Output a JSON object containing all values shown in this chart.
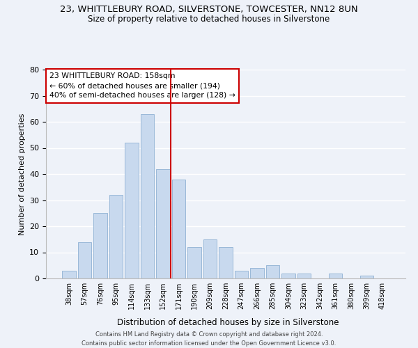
{
  "title": "23, WHITTLEBURY ROAD, SILVERSTONE, TOWCESTER, NN12 8UN",
  "subtitle": "Size of property relative to detached houses in Silverstone",
  "xlabel": "Distribution of detached houses by size in Silverstone",
  "ylabel": "Number of detached properties",
  "bar_color": "#c8d9ee",
  "bar_edge_color": "#9ab8d8",
  "categories": [
    "38sqm",
    "57sqm",
    "76sqm",
    "95sqm",
    "114sqm",
    "133sqm",
    "152sqm",
    "171sqm",
    "190sqm",
    "209sqm",
    "228sqm",
    "247sqm",
    "266sqm",
    "285sqm",
    "304sqm",
    "323sqm",
    "342sqm",
    "361sqm",
    "380sqm",
    "399sqm",
    "418sqm"
  ],
  "values": [
    3,
    14,
    25,
    32,
    52,
    63,
    42,
    38,
    12,
    15,
    12,
    3,
    4,
    5,
    2,
    2,
    0,
    2,
    0,
    1,
    0
  ],
  "vline_x_index": 6,
  "vline_color": "#cc0000",
  "annotation_line1": "23 WHITTLEBURY ROAD: 158sqm",
  "annotation_line2": "← 60% of detached houses are smaller (194)",
  "annotation_line3": "40% of semi-detached houses are larger (128) →",
  "annotation_box_color": "#ffffff",
  "annotation_box_edge": "#cc0000",
  "ylim": [
    0,
    80
  ],
  "yticks": [
    0,
    10,
    20,
    30,
    40,
    50,
    60,
    70,
    80
  ],
  "footnote": "Contains HM Land Registry data © Crown copyright and database right 2024.\nContains public sector information licensed under the Open Government Licence v3.0.",
  "background_color": "#eef2f9",
  "grid_color": "#ffffff"
}
